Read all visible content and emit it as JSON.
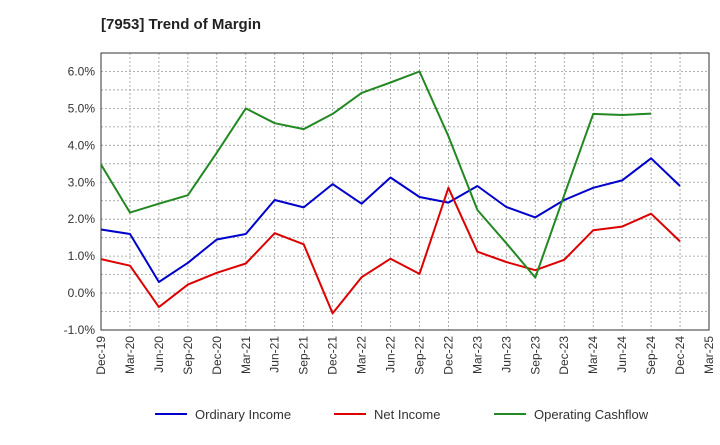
{
  "chart_data": {
    "type": "line",
    "title": "[7953]  Trend of Margin",
    "xlabel": "",
    "ylabel": "",
    "categories": [
      "Dec-19",
      "Mar-20",
      "Jun-20",
      "Sep-20",
      "Dec-20",
      "Mar-21",
      "Jun-21",
      "Sep-21",
      "Dec-21",
      "Mar-22",
      "Jun-22",
      "Sep-22",
      "Dec-22",
      "Mar-23",
      "Jun-23",
      "Sep-23",
      "Dec-23",
      "Mar-24",
      "Jun-24",
      "Sep-24",
      "Dec-24",
      "Mar-25"
    ],
    "y_ticks": [
      "-1.0%",
      "0.0%",
      "1.0%",
      "2.0%",
      "3.0%",
      "4.0%",
      "5.0%",
      "6.0%"
    ],
    "ylim": [
      -1.0,
      6.5
    ],
    "grid": true,
    "legend_position": "bottom",
    "series": [
      {
        "name": "Ordinary Income",
        "color": "#0000cc",
        "values": [
          1.72,
          1.6,
          0.3,
          0.82,
          1.45,
          1.6,
          2.52,
          2.32,
          2.95,
          2.42,
          3.13,
          2.6,
          2.45,
          2.9,
          2.33,
          2.05,
          2.52,
          2.85,
          3.05,
          3.65,
          2.9,
          null
        ]
      },
      {
        "name": "Net Income",
        "color": "#dd0000",
        "values": [
          0.92,
          0.74,
          -0.38,
          0.23,
          0.55,
          0.8,
          1.62,
          1.32,
          -0.55,
          0.43,
          0.93,
          0.52,
          2.85,
          1.12,
          0.84,
          0.62,
          0.9,
          1.7,
          1.8,
          2.15,
          1.4,
          null
        ]
      },
      {
        "name": "Operating Cashflow",
        "color": "#228822",
        "values": [
          3.48,
          2.18,
          2.42,
          2.65,
          3.8,
          5.0,
          4.6,
          4.44,
          4.85,
          5.42,
          5.7,
          6.0,
          4.25,
          2.25,
          1.35,
          0.42,
          2.65,
          4.85,
          4.82,
          4.86,
          null,
          null
        ]
      }
    ]
  }
}
